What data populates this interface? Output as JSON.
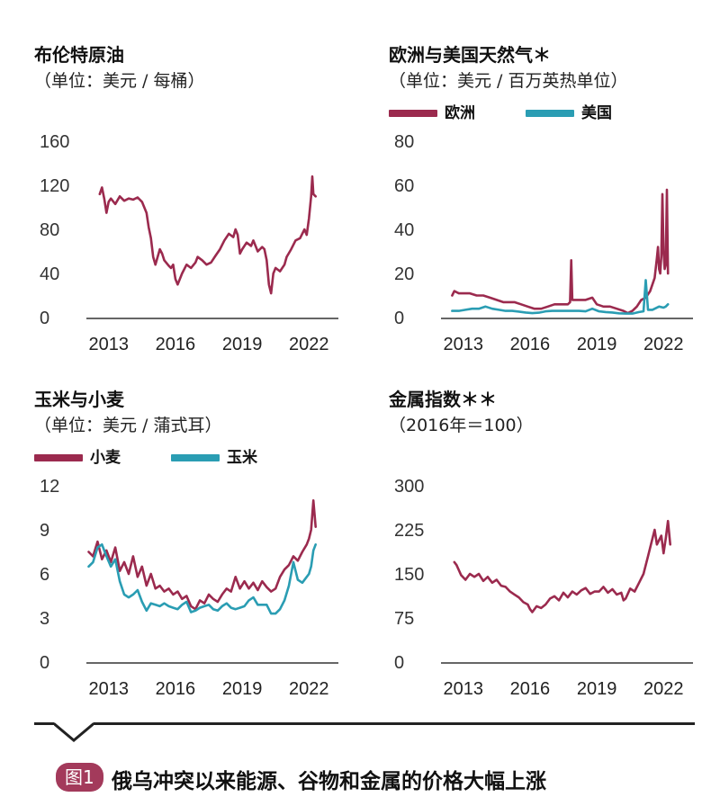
{
  "colors": {
    "primary": "#9b2a4e",
    "secondary": "#2a9db3",
    "axis": "#333333",
    "badge": "#a33a5b"
  },
  "footer": {
    "badge": "图1",
    "caption": "俄乌冲突以来能源、谷物和金属的价格大幅上涨"
  },
  "chart_data": [
    {
      "type": "line",
      "title": "布伦特原油",
      "subtitle": "（单位：美元 / 每桶）",
      "x_ticks": [
        "2013",
        "2016",
        "2019",
        "2022"
      ],
      "y_ticks": [
        "0",
        "40",
        "80",
        "120",
        "160"
      ],
      "ylim": [
        0,
        160
      ],
      "xlim": [
        2012.0,
        2023.0
      ],
      "series": [
        {
          "color": "#9b2a4e",
          "x": [
            2012.6,
            2012.7,
            2012.8,
            2012.9,
            2013.0,
            2013.1,
            2013.3,
            2013.5,
            2013.7,
            2013.9,
            2014.1,
            2014.3,
            2014.5,
            2014.7,
            2014.8,
            2014.9,
            2015.0,
            2015.1,
            2015.3,
            2015.4,
            2015.5,
            2015.7,
            2015.8,
            2015.9,
            2016.0,
            2016.1,
            2016.3,
            2016.5,
            2016.7,
            2016.9,
            2017.0,
            2017.2,
            2017.4,
            2017.6,
            2017.8,
            2018.0,
            2018.2,
            2018.4,
            2018.6,
            2018.7,
            2018.8,
            2018.9,
            2019.0,
            2019.2,
            2019.4,
            2019.5,
            2019.7,
            2019.9,
            2020.0,
            2020.1,
            2020.2,
            2020.3,
            2020.4,
            2020.5,
            2020.7,
            2020.9,
            2021.0,
            2021.2,
            2021.4,
            2021.6,
            2021.8,
            2021.9,
            2022.0,
            2022.1,
            2022.15,
            2022.2,
            2022.3
          ],
          "y": [
            112,
            118,
            108,
            95,
            105,
            108,
            103,
            110,
            106,
            108,
            107,
            109,
            105,
            95,
            82,
            72,
            55,
            48,
            62,
            58,
            52,
            47,
            45,
            48,
            35,
            30,
            40,
            48,
            45,
            50,
            55,
            52,
            48,
            50,
            56,
            62,
            70,
            76,
            73,
            80,
            75,
            58,
            62,
            68,
            65,
            70,
            60,
            64,
            62,
            52,
            30,
            22,
            40,
            45,
            42,
            48,
            55,
            62,
            70,
            72,
            80,
            75,
            90,
            110,
            128,
            112,
            110
          ]
        }
      ]
    },
    {
      "type": "line",
      "title": "欧洲与美国天然气＊",
      "subtitle": "（单位：美元 / 百万英热单位）",
      "legend": [
        "欧洲",
        "美国"
      ],
      "x_ticks": [
        "2013",
        "2016",
        "2019",
        "2022"
      ],
      "y_ticks": [
        "0",
        "20",
        "40",
        "60",
        "80"
      ],
      "ylim": [
        0,
        80
      ],
      "xlim": [
        2012.0,
        2023.0
      ],
      "series": [
        {
          "name": "欧洲",
          "color": "#9b2a4e",
          "x": [
            2012.5,
            2012.6,
            2012.8,
            2013.0,
            2013.3,
            2013.6,
            2013.9,
            2014.2,
            2014.5,
            2014.8,
            2015.0,
            2015.3,
            2015.6,
            2015.9,
            2016.2,
            2016.5,
            2016.8,
            2017.1,
            2017.4,
            2017.7,
            2017.8,
            2017.85,
            2017.9,
            2018.2,
            2018.5,
            2018.8,
            2019.0,
            2019.3,
            2019.6,
            2019.9,
            2020.2,
            2020.4,
            2020.6,
            2020.8,
            2021.0,
            2021.2,
            2021.4,
            2021.6,
            2021.7,
            2021.75,
            2021.8,
            2021.85,
            2021.9,
            2021.95,
            2022.0,
            2022.05,
            2022.1,
            2022.15,
            2022.2
          ],
          "y": [
            10,
            12,
            11,
            11,
            11,
            10,
            10,
            9,
            8,
            7,
            7,
            7,
            6,
            5,
            4,
            4,
            5,
            6,
            6,
            6,
            7,
            26,
            8,
            8,
            8,
            9,
            6,
            5,
            5,
            4,
            3,
            2,
            3,
            5,
            8,
            9,
            12,
            18,
            27,
            32,
            22,
            20,
            28,
            56,
            30,
            22,
            24,
            58,
            20
          ]
        },
        {
          "name": "美国",
          "color": "#2a9db3",
          "x": [
            2012.5,
            2012.8,
            2013.1,
            2013.4,
            2013.7,
            2014.0,
            2014.3,
            2014.6,
            2014.9,
            2015.2,
            2015.5,
            2015.8,
            2016.1,
            2016.4,
            2016.7,
            2017.0,
            2017.3,
            2017.6,
            2017.9,
            2018.2,
            2018.5,
            2018.8,
            2019.1,
            2019.4,
            2019.7,
            2020.0,
            2020.3,
            2020.6,
            2020.9,
            2021.1,
            2021.2,
            2021.3,
            2021.5,
            2021.8,
            2022.0,
            2022.1,
            2022.2
          ],
          "y": [
            3,
            3,
            3.5,
            4,
            4,
            5,
            4,
            3.5,
            3,
            3,
            2.7,
            2.3,
            2,
            2.2,
            2.8,
            3,
            3,
            3,
            3,
            3,
            2.8,
            4,
            2.8,
            2.5,
            2.3,
            1.9,
            1.8,
            1.8,
            2.5,
            2.8,
            17,
            3.5,
            3.5,
            5,
            4.5,
            5,
            6
          ]
        }
      ]
    },
    {
      "type": "line",
      "title": "玉米与小麦",
      "subtitle": "（单位：美元 / 蒲式耳）",
      "legend": [
        "小麦",
        "玉米"
      ],
      "x_ticks": [
        "2013",
        "2016",
        "2019",
        "2022"
      ],
      "y_ticks": [
        "0",
        "3",
        "6",
        "9",
        "12"
      ],
      "ylim": [
        0,
        12
      ],
      "xlim": [
        2012.0,
        2023.0
      ],
      "series": [
        {
          "name": "小麦",
          "color": "#9b2a4e",
          "x": [
            2012.1,
            2012.3,
            2012.5,
            2012.7,
            2012.9,
            2013.1,
            2013.3,
            2013.5,
            2013.7,
            2013.9,
            2014.1,
            2014.3,
            2014.5,
            2014.7,
            2014.9,
            2015.1,
            2015.3,
            2015.5,
            2015.7,
            2015.9,
            2016.1,
            2016.3,
            2016.5,
            2016.7,
            2016.9,
            2017.1,
            2017.3,
            2017.5,
            2017.7,
            2017.9,
            2018.1,
            2018.3,
            2018.5,
            2018.7,
            2018.9,
            2019.1,
            2019.3,
            2019.5,
            2019.7,
            2019.9,
            2020.1,
            2020.3,
            2020.5,
            2020.7,
            2020.9,
            2021.1,
            2021.3,
            2021.5,
            2021.7,
            2021.9,
            2022.0,
            2022.1,
            2022.2,
            2022.3
          ],
          "y": [
            7.5,
            7.2,
            8.2,
            7.0,
            7.6,
            6.8,
            7.8,
            6.2,
            6.8,
            6.0,
            7.2,
            5.8,
            6.5,
            5.2,
            6.0,
            5.0,
            5.2,
            4.8,
            5.0,
            4.6,
            4.8,
            4.3,
            4.5,
            3.8,
            3.6,
            4.2,
            4.0,
            4.6,
            4.3,
            4.1,
            4.6,
            5.0,
            4.8,
            5.8,
            5.0,
            5.5,
            5.0,
            5.4,
            4.9,
            5.5,
            5.1,
            4.8,
            5.0,
            5.8,
            6.3,
            6.6,
            7.2,
            6.9,
            7.5,
            8.0,
            8.4,
            9.0,
            11.0,
            9.2
          ]
        },
        {
          "name": "玉米",
          "color": "#2a9db3",
          "x": [
            2012.1,
            2012.3,
            2012.5,
            2012.7,
            2012.9,
            2013.1,
            2013.3,
            2013.5,
            2013.7,
            2013.9,
            2014.1,
            2014.3,
            2014.5,
            2014.7,
            2014.9,
            2015.1,
            2015.3,
            2015.5,
            2015.7,
            2015.9,
            2016.1,
            2016.3,
            2016.5,
            2016.7,
            2016.9,
            2017.1,
            2017.3,
            2017.5,
            2017.7,
            2017.9,
            2018.1,
            2018.3,
            2018.5,
            2018.7,
            2018.9,
            2019.1,
            2019.3,
            2019.5,
            2019.7,
            2019.9,
            2020.1,
            2020.3,
            2020.5,
            2020.7,
            2020.9,
            2021.1,
            2021.3,
            2021.5,
            2021.7,
            2021.9,
            2022.0,
            2022.1,
            2022.2,
            2022.3
          ],
          "y": [
            6.5,
            6.8,
            7.8,
            8.0,
            7.2,
            6.5,
            7.0,
            5.5,
            4.6,
            4.4,
            4.6,
            4.9,
            4.1,
            3.5,
            4.0,
            3.9,
            3.8,
            4.0,
            3.8,
            3.7,
            3.6,
            3.9,
            4.1,
            3.4,
            3.5,
            3.7,
            3.8,
            3.9,
            3.6,
            3.5,
            3.8,
            4.0,
            3.7,
            3.6,
            3.7,
            3.8,
            4.2,
            4.4,
            3.9,
            3.9,
            3.9,
            3.3,
            3.3,
            3.6,
            4.2,
            5.2,
            6.8,
            5.6,
            5.4,
            5.8,
            6.0,
            6.5,
            7.6,
            8.0
          ]
        }
      ]
    },
    {
      "type": "line",
      "title": "金属指数＊＊",
      "subtitle": "（2016年＝100）",
      "x_ticks": [
        "2013",
        "2016",
        "2019",
        "2022"
      ],
      "y_ticks": [
        "0",
        "75",
        "150",
        "225",
        "300"
      ],
      "ylim": [
        0,
        300
      ],
      "xlim": [
        2012.0,
        2023.0
      ],
      "series": [
        {
          "color": "#9b2a4e",
          "x": [
            2012.6,
            2012.7,
            2012.9,
            2013.1,
            2013.3,
            2013.5,
            2013.7,
            2013.9,
            2014.1,
            2014.3,
            2014.5,
            2014.7,
            2014.9,
            2015.1,
            2015.3,
            2015.5,
            2015.7,
            2015.9,
            2016.0,
            2016.1,
            2016.3,
            2016.5,
            2016.7,
            2016.9,
            2017.1,
            2017.3,
            2017.5,
            2017.7,
            2017.9,
            2018.1,
            2018.3,
            2018.5,
            2018.7,
            2018.9,
            2019.1,
            2019.3,
            2019.5,
            2019.7,
            2019.9,
            2020.1,
            2020.2,
            2020.3,
            2020.5,
            2020.7,
            2020.9,
            2021.1,
            2021.3,
            2021.5,
            2021.6,
            2021.7,
            2021.9,
            2022.0,
            2022.1,
            2022.2,
            2022.3
          ],
          "y": [
            170,
            165,
            148,
            140,
            150,
            145,
            150,
            138,
            145,
            135,
            140,
            130,
            128,
            120,
            115,
            110,
            102,
            98,
            90,
            85,
            95,
            92,
            98,
            108,
            112,
            105,
            118,
            110,
            120,
            115,
            122,
            126,
            116,
            120,
            120,
            128,
            118,
            124,
            115,
            118,
            105,
            108,
            125,
            120,
            135,
            150,
            180,
            210,
            225,
            200,
            215,
            185,
            210,
            240,
            200
          ]
        }
      ]
    }
  ]
}
